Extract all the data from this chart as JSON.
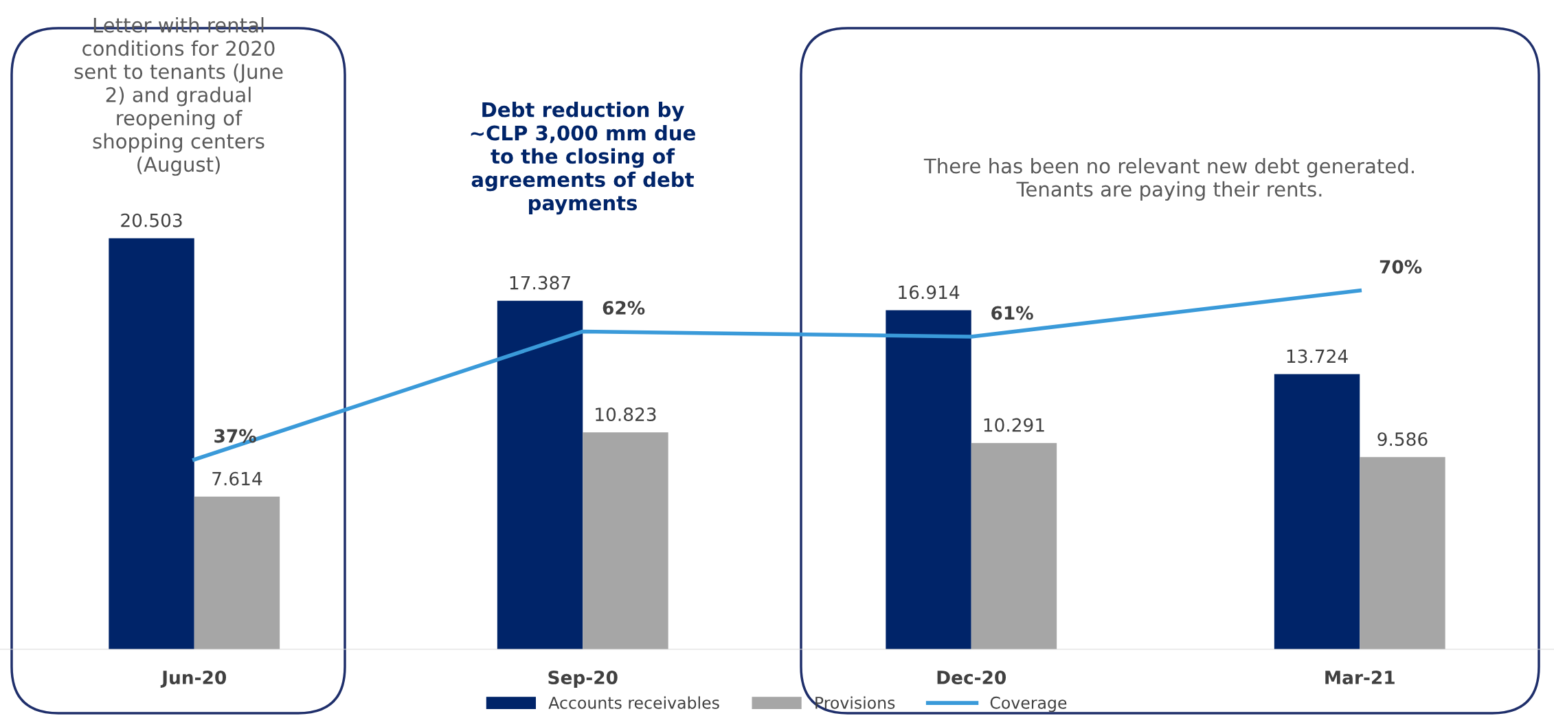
{
  "chart_data": {
    "type": "bar",
    "categories": [
      "Jun-20",
      "Sep-20",
      "Dec-20",
      "Mar-21"
    ],
    "series": [
      {
        "name": "Accounts receivables",
        "color": "#002469",
        "values": [
          20.503,
          17.387,
          16.914,
          13.724
        ]
      },
      {
        "name": "Provisions",
        "color": "#a6a6a6",
        "values": [
          7.614,
          10.823,
          10.291,
          9.586
        ]
      },
      {
        "name": "Coverage",
        "type": "line",
        "axis": "y2",
        "color": "#3a9ad9",
        "values": [
          37,
          62,
          61,
          70
        ],
        "value_labels": [
          "37%",
          "62%",
          "61%",
          "70%"
        ]
      }
    ],
    "data_labels": true,
    "grid": false,
    "legend": "bottom",
    "tick_labels": "x",
    "marker": "none",
    "annotations": [
      "Letter with rental\nconditions for 2020\nsent to tenants (June\n2) and gradual\nreopening of\nshopping centers\n(August)",
      "Debt reduction by\n~CLP 3,000 mm due\nto the closing of\nagreements of debt\npayments",
      "There has been no relevant new debt generated.\nTenants are paying their rents."
    ]
  }
}
